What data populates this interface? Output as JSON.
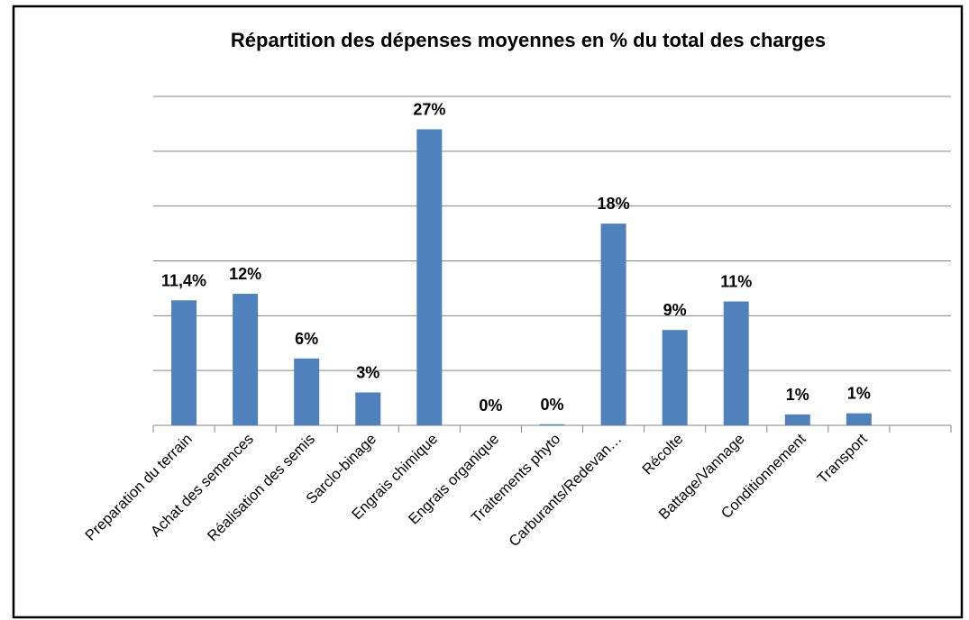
{
  "chart_data": {
    "type": "bar",
    "title": "Répartition des dépenses moyennes en % du total des charges",
    "categories": [
      "Preparation du terrain",
      "Achat des semences",
      "Réalisation des semis",
      "Sarclo-binage",
      "Engrais chimique",
      "Engrais organique",
      "Traitements phyto",
      "Carburants/Redevan…",
      "Récolte",
      "Battage/Vannage",
      "Conditionnement",
      "Transport",
      null
    ],
    "values": [
      11.4,
      12,
      6.1,
      3,
      27,
      0,
      0.1,
      18.4,
      8.7,
      11.3,
      1,
      1.1,
      null
    ],
    "value_labels": [
      "11,4%",
      "12%",
      "6%",
      "3%",
      "27%",
      "0%",
      "0%",
      "18%",
      "9%",
      "11%",
      "1%",
      "1%",
      null
    ],
    "color": "#4f81bd",
    "ylim": [
      0,
      30
    ],
    "yticks": [
      0,
      5,
      10,
      15,
      20,
      25,
      30
    ],
    "grid": true
  }
}
